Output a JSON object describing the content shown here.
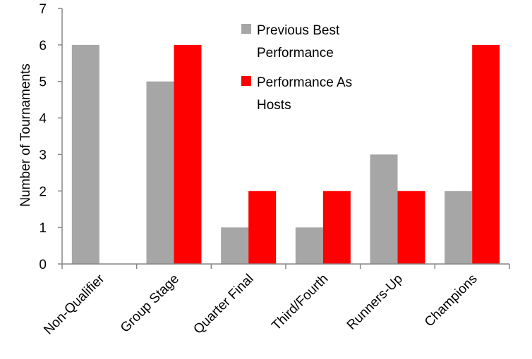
{
  "chart_data": {
    "type": "bar",
    "categories": [
      "Non-Qualifier",
      "Group Stage",
      "Quarter Final",
      "Third/Fourth",
      "Runners-Up",
      "Champions"
    ],
    "series": [
      {
        "name": "Previous Best Performance",
        "color": "#a6a6a6",
        "values": [
          6,
          5,
          1,
          1,
          3,
          2
        ]
      },
      {
        "name": "Performance As Hosts",
        "color": "#ff0000",
        "values": [
          0,
          6,
          2,
          2,
          2,
          6
        ]
      }
    ],
    "title": "",
    "xlabel": "",
    "ylabel": "Number of Tournaments",
    "ylim": [
      0,
      7
    ],
    "yticks": [
      0,
      1,
      2,
      3,
      4,
      5,
      6,
      7
    ],
    "grid": false,
    "legend_position": "top-right"
  }
}
